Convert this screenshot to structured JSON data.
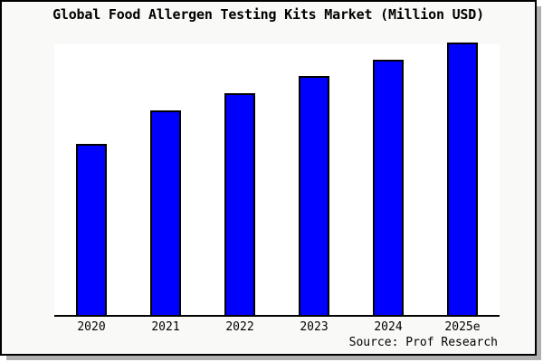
{
  "window": {
    "background": "#f9f9f8",
    "border_color": "#000000",
    "shadow_color": "#b0b0b0"
  },
  "chart_data": {
    "type": "bar",
    "title": "Global Food Allergen Testing Kits Market (Million USD)",
    "categories": [
      "2020",
      "2021",
      "2022",
      "2023",
      "2024",
      "2025e"
    ],
    "values": [
      62.4,
      74.8,
      81.2,
      87.6,
      93.6,
      100
    ],
    "value_basis": "relative bar height as % of tallest bar (2025e); chart shows no numeric y-axis scale",
    "ylim": [
      0,
      100
    ],
    "xlabel": "",
    "ylabel": "",
    "grid": false,
    "legend": false,
    "y_axis_labels_visible": false,
    "bar_color": "#0000ff",
    "bar_border_color": "#000000",
    "plot_background": "#ffffff",
    "axis_color": "#000000",
    "source_note": "Source: Prof Research"
  }
}
